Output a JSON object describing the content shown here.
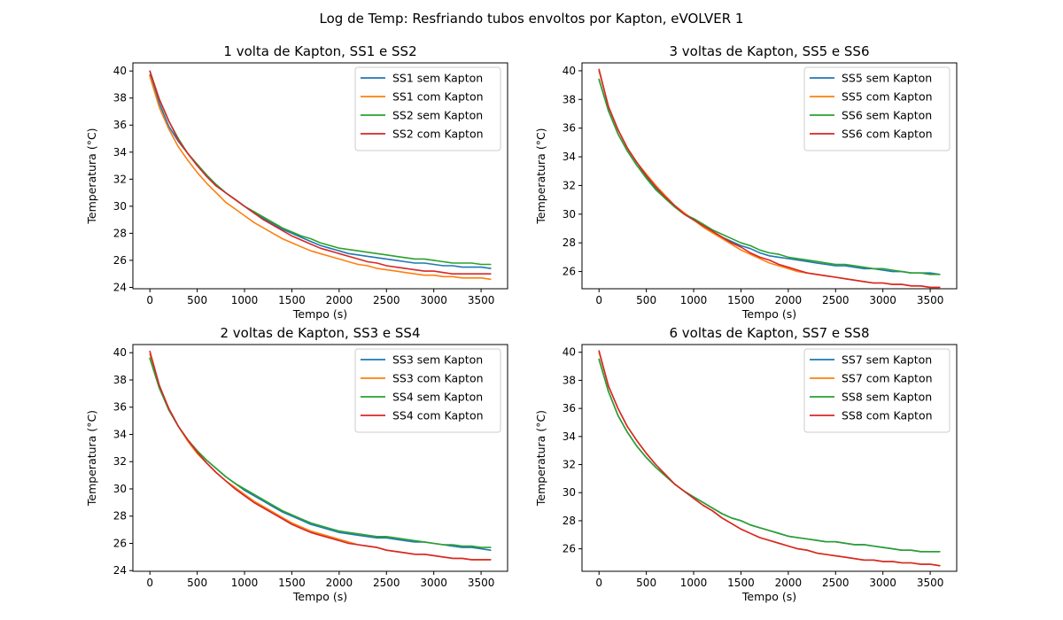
{
  "figure_title": "Log de Temp: Resfriando tubos envoltos por Kapton, eVOLVER 1",
  "chart_data": [
    {
      "type": "line",
      "title": "1 volta de Kapton, SS1 e SS2",
      "xlabel": "Tempo (s)",
      "ylabel": "Temperatura (°C)",
      "xlim": [
        -180,
        3780
      ],
      "ylim": [
        23.9,
        40.6
      ],
      "xticks": [
        0,
        500,
        1000,
        1500,
        2000,
        2500,
        3000,
        3500
      ],
      "yticks": [
        24,
        26,
        28,
        30,
        32,
        34,
        36,
        38,
        40
      ],
      "legend": "top-right",
      "x": [
        0,
        100,
        200,
        300,
        400,
        500,
        600,
        700,
        800,
        900,
        1000,
        1100,
        1200,
        1300,
        1400,
        1500,
        1600,
        1700,
        1800,
        1900,
        2000,
        2100,
        2200,
        2300,
        2400,
        2500,
        2600,
        2700,
        2800,
        2900,
        3000,
        3100,
        3200,
        3300,
        3400,
        3500,
        3600
      ],
      "series": [
        {
          "name": "SS1 sem Kapton",
          "color": "#1f77b4",
          "values": [
            39.7,
            37.6,
            35.9,
            34.8,
            33.9,
            33.1,
            32.3,
            31.6,
            31.0,
            30.5,
            30.0,
            29.5,
            29.1,
            28.7,
            28.3,
            28.0,
            27.7,
            27.4,
            27.1,
            26.9,
            26.7,
            26.5,
            26.4,
            26.3,
            26.2,
            26.1,
            26.0,
            25.9,
            25.8,
            25.8,
            25.7,
            25.6,
            25.6,
            25.5,
            25.5,
            25.5,
            25.4
          ]
        },
        {
          "name": "SS1 com Kapton",
          "color": "#ff7f0e",
          "values": [
            39.6,
            37.3,
            35.7,
            34.4,
            33.4,
            32.5,
            31.7,
            31.0,
            30.3,
            29.8,
            29.3,
            28.8,
            28.4,
            28.0,
            27.6,
            27.3,
            27.0,
            26.7,
            26.5,
            26.3,
            26.1,
            25.9,
            25.7,
            25.6,
            25.4,
            25.3,
            25.2,
            25.1,
            25.0,
            24.9,
            24.9,
            24.8,
            24.8,
            24.7,
            24.7,
            24.7,
            24.6
          ]
        },
        {
          "name": "SS2 sem Kapton",
          "color": "#2ca02c",
          "values": [
            40.0,
            37.9,
            36.3,
            35.0,
            33.9,
            33.1,
            32.3,
            31.6,
            31.0,
            30.5,
            30.0,
            29.6,
            29.2,
            28.8,
            28.4,
            28.1,
            27.8,
            27.6,
            27.3,
            27.1,
            26.9,
            26.8,
            26.7,
            26.6,
            26.5,
            26.4,
            26.3,
            26.2,
            26.1,
            26.1,
            26.0,
            25.9,
            25.8,
            25.8,
            25.8,
            25.7,
            25.7
          ]
        },
        {
          "name": "SS2 com Kapton",
          "color": "#d62728",
          "values": [
            40.0,
            37.9,
            36.3,
            34.9,
            33.9,
            33.0,
            32.2,
            31.5,
            31.0,
            30.5,
            30.0,
            29.5,
            29.0,
            28.6,
            28.2,
            27.8,
            27.5,
            27.2,
            26.9,
            26.7,
            26.5,
            26.3,
            26.1,
            25.9,
            25.8,
            25.6,
            25.5,
            25.4,
            25.3,
            25.2,
            25.2,
            25.1,
            25.0,
            25.0,
            25.0,
            25.0,
            25.0
          ]
        }
      ]
    },
    {
      "type": "line",
      "title": "3 voltas de Kapton, SS5 e SS6",
      "xlabel": "Tempo (s)",
      "ylabel": "Temperatura (°C)",
      "xlim": [
        -180,
        3780
      ],
      "ylim": [
        24.8,
        40.55
      ],
      "xticks": [
        0,
        500,
        1000,
        1500,
        2000,
        2500,
        3000,
        3500
      ],
      "yticks": [
        26,
        28,
        30,
        32,
        34,
        36,
        38,
        40
      ],
      "legend": "top-right",
      "x": [
        0,
        100,
        200,
        300,
        400,
        500,
        600,
        700,
        800,
        900,
        1000,
        1100,
        1200,
        1300,
        1400,
        1500,
        1600,
        1700,
        1800,
        1900,
        2000,
        2100,
        2200,
        2300,
        2400,
        2500,
        2600,
        2700,
        2800,
        2900,
        3000,
        3100,
        3200,
        3300,
        3400,
        3500,
        3600
      ],
      "series": [
        {
          "name": "SS5 sem Kapton",
          "color": "#1f77b4",
          "values": [
            39.4,
            37.2,
            35.6,
            34.4,
            33.4,
            32.6,
            31.8,
            31.1,
            30.5,
            30.0,
            29.6,
            29.2,
            28.8,
            28.4,
            28.1,
            27.8,
            27.6,
            27.3,
            27.1,
            27.0,
            26.9,
            26.8,
            26.7,
            26.6,
            26.5,
            26.4,
            26.4,
            26.3,
            26.2,
            26.2,
            26.1,
            26.0,
            26.0,
            25.9,
            25.9,
            25.9,
            25.8
          ]
        },
        {
          "name": "SS5 com Kapton",
          "color": "#ff7f0e",
          "values": [
            40.0,
            37.5,
            35.9,
            34.6,
            33.6,
            32.8,
            32.0,
            31.3,
            30.6,
            30.1,
            29.6,
            29.1,
            28.7,
            28.3,
            27.9,
            27.5,
            27.2,
            26.9,
            26.6,
            26.4,
            26.2,
            26.0,
            25.9,
            25.8,
            25.7,
            25.6,
            25.5,
            25.4,
            25.3,
            25.2,
            25.2,
            25.1,
            25.1,
            25.0,
            25.0,
            24.9,
            24.9
          ]
        },
        {
          "name": "SS6 sem Kapton",
          "color": "#2ca02c",
          "values": [
            39.4,
            37.2,
            35.6,
            34.4,
            33.4,
            32.5,
            31.7,
            31.1,
            30.5,
            30.0,
            29.7,
            29.3,
            28.9,
            28.6,
            28.3,
            28.0,
            27.8,
            27.5,
            27.3,
            27.2,
            27.0,
            26.9,
            26.8,
            26.7,
            26.6,
            26.5,
            26.5,
            26.4,
            26.3,
            26.2,
            26.2,
            26.1,
            26.0,
            25.9,
            25.9,
            25.8,
            25.8
          ]
        },
        {
          "name": "SS6 com Kapton",
          "color": "#d62728",
          "values": [
            40.1,
            37.5,
            35.9,
            34.6,
            33.6,
            32.7,
            31.9,
            31.2,
            30.6,
            30.0,
            29.6,
            29.2,
            28.8,
            28.4,
            28.0,
            27.7,
            27.3,
            27.0,
            26.8,
            26.5,
            26.3,
            26.1,
            25.9,
            25.8,
            25.7,
            25.6,
            25.5,
            25.4,
            25.3,
            25.2,
            25.2,
            25.1,
            25.1,
            25.0,
            25.0,
            24.9,
            24.9
          ]
        }
      ]
    },
    {
      "type": "line",
      "title": "2 voltas de Kapton, SS3 e SS4",
      "xlabel": "Tempo (s)",
      "ylabel": "Temperatura (°C)",
      "xlim": [
        -180,
        3780
      ],
      "ylim": [
        23.95,
        40.6
      ],
      "xticks": [
        0,
        500,
        1000,
        1500,
        2000,
        2500,
        3000,
        3500
      ],
      "yticks": [
        24,
        26,
        28,
        30,
        32,
        34,
        36,
        38,
        40
      ],
      "legend": "top-right",
      "x": [
        0,
        100,
        200,
        300,
        400,
        500,
        600,
        700,
        800,
        900,
        1000,
        1100,
        1200,
        1300,
        1400,
        1500,
        1600,
        1700,
        1800,
        1900,
        2000,
        2100,
        2200,
        2300,
        2400,
        2500,
        2600,
        2700,
        2800,
        2900,
        3000,
        3100,
        3200,
        3300,
        3400,
        3500,
        3600
      ],
      "series": [
        {
          "name": "SS3 sem Kapton",
          "color": "#1f77b4",
          "values": [
            39.6,
            37.4,
            35.8,
            34.6,
            33.6,
            32.8,
            32.1,
            31.5,
            30.9,
            30.4,
            29.9,
            29.5,
            29.1,
            28.7,
            28.3,
            28.0,
            27.7,
            27.4,
            27.2,
            27.0,
            26.8,
            26.7,
            26.6,
            26.5,
            26.4,
            26.4,
            26.3,
            26.2,
            26.1,
            26.1,
            26.0,
            25.9,
            25.8,
            25.7,
            25.7,
            25.6,
            25.5
          ]
        },
        {
          "name": "SS3 com Kapton",
          "color": "#ff7f0e",
          "values": [
            39.9,
            37.5,
            35.9,
            34.6,
            33.5,
            32.6,
            31.9,
            31.2,
            30.6,
            30.1,
            29.6,
            29.1,
            28.7,
            28.3,
            27.9,
            27.5,
            27.2,
            26.9,
            26.7,
            26.5,
            26.3,
            26.1,
            25.9,
            25.8,
            25.7,
            25.5,
            25.4,
            25.3,
            25.2,
            25.2,
            25.1,
            25.0,
            24.9,
            24.9,
            24.8,
            24.8,
            24.8
          ]
        },
        {
          "name": "SS4 sem Kapton",
          "color": "#2ca02c",
          "values": [
            39.6,
            37.4,
            35.8,
            34.6,
            33.6,
            32.8,
            32.1,
            31.5,
            30.9,
            30.4,
            30.0,
            29.6,
            29.2,
            28.8,
            28.4,
            28.1,
            27.8,
            27.5,
            27.3,
            27.1,
            26.9,
            26.8,
            26.7,
            26.6,
            26.5,
            26.5,
            26.4,
            26.3,
            26.2,
            26.1,
            26.0,
            25.9,
            25.9,
            25.8,
            25.8,
            25.7,
            25.7
          ]
        },
        {
          "name": "SS4 com Kapton",
          "color": "#d62728",
          "values": [
            40.1,
            37.6,
            35.9,
            34.6,
            33.6,
            32.7,
            31.9,
            31.2,
            30.6,
            30.0,
            29.5,
            29.0,
            28.6,
            28.2,
            27.8,
            27.4,
            27.1,
            26.8,
            26.6,
            26.4,
            26.2,
            26.0,
            25.9,
            25.8,
            25.7,
            25.5,
            25.4,
            25.3,
            25.2,
            25.2,
            25.1,
            25.0,
            24.9,
            24.9,
            24.8,
            24.8,
            24.8
          ]
        }
      ]
    },
    {
      "type": "line",
      "title": "6 voltas de Kapton, SS7 e SS8",
      "xlabel": "Tempo (s)",
      "ylabel": "Temperatura (°C)",
      "xlim": [
        -180,
        3780
      ],
      "ylim": [
        24.4,
        40.55
      ],
      "xticks": [
        0,
        500,
        1000,
        1500,
        2000,
        2500,
        3000,
        3500
      ],
      "yticks": [
        26,
        28,
        30,
        32,
        34,
        36,
        38,
        40
      ],
      "legend": "top-right",
      "x": [
        0,
        100,
        200,
        300,
        400,
        500,
        600,
        700,
        800,
        900,
        1000,
        1100,
        1200,
        1300,
        1400,
        1500,
        1600,
        1700,
        1800,
        1900,
        2000,
        2100,
        2200,
        2300,
        2400,
        2500,
        2600,
        2700,
        2800,
        2900,
        3000,
        3100,
        3200,
        3300,
        3400,
        3500,
        3600
      ],
      "series": [
        {
          "name": "SS7 sem Kapton",
          "color": "#1f77b4",
          "values": [
            39.5,
            37.2,
            35.5,
            34.3,
            33.3,
            32.5,
            31.8,
            31.2,
            30.6,
            30.1,
            29.7,
            29.3,
            28.9,
            28.5,
            28.2,
            28.0,
            27.7,
            27.5,
            27.3,
            27.1,
            26.9,
            26.8,
            26.7,
            26.6,
            26.5,
            26.5,
            26.4,
            26.3,
            26.3,
            26.2,
            26.1,
            26.0,
            25.9,
            25.9,
            25.8,
            25.8,
            25.8
          ]
        },
        {
          "name": "SS7 com Kapton",
          "color": "#ff7f0e",
          "values": [
            40.0,
            37.6,
            36.0,
            34.7,
            33.7,
            32.8,
            32.0,
            31.3,
            30.6,
            30.1,
            29.6,
            29.1,
            28.7,
            28.2,
            27.8,
            27.4,
            27.1,
            26.8,
            26.6,
            26.4,
            26.2,
            26.0,
            25.9,
            25.7,
            25.6,
            25.5,
            25.4,
            25.3,
            25.2,
            25.2,
            25.1,
            25.1,
            25.0,
            25.0,
            24.9,
            24.9,
            24.8
          ]
        },
        {
          "name": "SS8 sem Kapton",
          "color": "#2ca02c",
          "values": [
            39.5,
            37.2,
            35.5,
            34.3,
            33.3,
            32.5,
            31.8,
            31.2,
            30.6,
            30.1,
            29.7,
            29.3,
            28.9,
            28.5,
            28.2,
            28.0,
            27.7,
            27.5,
            27.3,
            27.1,
            26.9,
            26.8,
            26.7,
            26.6,
            26.5,
            26.5,
            26.4,
            26.3,
            26.3,
            26.2,
            26.1,
            26.0,
            25.9,
            25.9,
            25.8,
            25.8,
            25.8
          ]
        },
        {
          "name": "SS8 com Kapton",
          "color": "#d62728",
          "values": [
            40.1,
            37.6,
            36.0,
            34.7,
            33.7,
            32.8,
            32.0,
            31.3,
            30.6,
            30.1,
            29.6,
            29.1,
            28.7,
            28.2,
            27.8,
            27.4,
            27.1,
            26.8,
            26.6,
            26.4,
            26.2,
            26.0,
            25.9,
            25.7,
            25.6,
            25.5,
            25.4,
            25.3,
            25.2,
            25.2,
            25.1,
            25.1,
            25.0,
            25.0,
            24.9,
            24.9,
            24.8
          ]
        }
      ]
    }
  ]
}
